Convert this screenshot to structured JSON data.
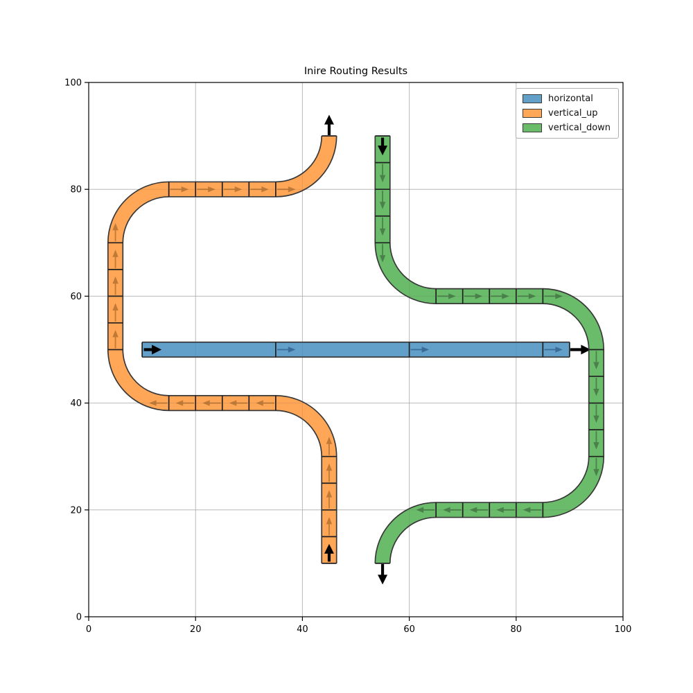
{
  "figure": {
    "background": "#ffffff"
  },
  "chart_data": {
    "type": "route-diagram",
    "title": "Inire Routing Results",
    "xlim": [
      0,
      100
    ],
    "ylim": [
      0,
      100
    ],
    "xticks": [
      0,
      20,
      40,
      60,
      80,
      100
    ],
    "yticks": [
      0,
      20,
      40,
      60,
      80,
      100
    ],
    "grid": true,
    "grid_color": "#cccccc",
    "legend": {
      "position": "upper right",
      "entries": [
        {
          "label": "horizontal",
          "color": "#62a0ca"
        },
        {
          "label": "vertical_up",
          "color": "#ffa657"
        },
        {
          "label": "vertical_down",
          "color": "#6abc6a"
        }
      ]
    },
    "routes": [
      {
        "name": "horizontal",
        "band_color": "#62a0ca",
        "edge_color": "#383838",
        "arrow_color": "#3b6c96",
        "start": [
          10,
          50
        ],
        "start_dir": [
          1,
          0
        ],
        "end": [
          90,
          50
        ],
        "end_dir": [
          1,
          0
        ],
        "segments": [
          {
            "type": "line",
            "from": [
              10,
              50
            ],
            "to": [
              90,
              50
            ],
            "marks": [
              25,
              50,
              75
            ]
          }
        ]
      },
      {
        "name": "vertical_up",
        "band_color": "#ffa657",
        "edge_color": "#383838",
        "arrow_color": "#c07a36",
        "start": [
          45,
          10
        ],
        "start_dir": [
          0,
          1
        ],
        "end": [
          45,
          90
        ],
        "end_dir": [
          0,
          1
        ],
        "segments": [
          {
            "type": "line",
            "from": [
              45,
              10
            ],
            "to": [
              45,
              30
            ],
            "marks": [
              5,
              10,
              15,
              20
            ]
          },
          {
            "type": "arc",
            "from": [
              45,
              30
            ],
            "to": [
              35,
              40
            ],
            "center": [
              35,
              30
            ]
          },
          {
            "type": "line",
            "from": [
              35,
              40
            ],
            "to": [
              15,
              40
            ],
            "marks": [
              0,
              5,
              10,
              15,
              20
            ]
          },
          {
            "type": "arc",
            "from": [
              15,
              40
            ],
            "to": [
              5,
              50
            ],
            "center": [
              15,
              50
            ]
          },
          {
            "type": "line",
            "from": [
              5,
              50
            ],
            "to": [
              5,
              70
            ],
            "marks": [
              0,
              5,
              10,
              15,
              20
            ]
          },
          {
            "type": "arc",
            "from": [
              5,
              70
            ],
            "to": [
              15,
              80
            ],
            "center": [
              15,
              70
            ]
          },
          {
            "type": "line",
            "from": [
              15,
              80
            ],
            "to": [
              35,
              80
            ],
            "marks": [
              0,
              5,
              10,
              15,
              20
            ]
          },
          {
            "type": "arc",
            "from": [
              35,
              80
            ],
            "to": [
              45,
              90
            ],
            "center": [
              35,
              90
            ]
          }
        ]
      },
      {
        "name": "vertical_down",
        "band_color": "#6abc6a",
        "edge_color": "#383838",
        "arrow_color": "#498149",
        "start": [
          55,
          90
        ],
        "start_dir": [
          0,
          -1
        ],
        "end": [
          55,
          10
        ],
        "end_dir": [
          0,
          -1
        ],
        "segments": [
          {
            "type": "line",
            "from": [
              55,
              90
            ],
            "to": [
              55,
              70
            ],
            "marks": [
              5,
              10,
              15,
              20
            ]
          },
          {
            "type": "arc",
            "from": [
              55,
              70
            ],
            "to": [
              65,
              60
            ],
            "center": [
              65,
              70
            ]
          },
          {
            "type": "line",
            "from": [
              65,
              60
            ],
            "to": [
              85,
              60
            ],
            "marks": [
              0,
              5,
              10,
              15,
              20
            ]
          },
          {
            "type": "arc",
            "from": [
              85,
              60
            ],
            "to": [
              95,
              50
            ],
            "center": [
              85,
              50
            ]
          },
          {
            "type": "line",
            "from": [
              95,
              50
            ],
            "to": [
              95,
              30
            ],
            "marks": [
              0,
              5,
              10,
              15,
              20
            ]
          },
          {
            "type": "arc",
            "from": [
              95,
              30
            ],
            "to": [
              85,
              20
            ],
            "center": [
              85,
              30
            ]
          },
          {
            "type": "line",
            "from": [
              85,
              20
            ],
            "to": [
              65,
              20
            ],
            "marks": [
              0,
              5,
              10,
              15,
              20
            ]
          },
          {
            "type": "arc",
            "from": [
              65,
              20
            ],
            "to": [
              55,
              10
            ],
            "center": [
              65,
              10
            ]
          }
        ]
      }
    ]
  }
}
